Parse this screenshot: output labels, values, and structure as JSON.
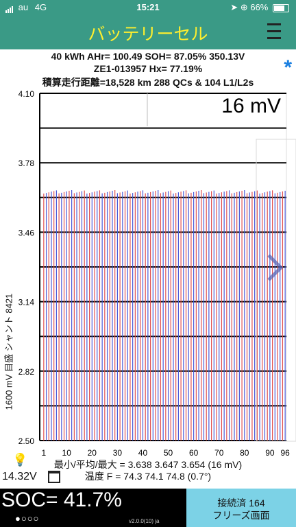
{
  "status_bar": {
    "carrier": "au",
    "network": "4G",
    "time": "15:21",
    "battery_pct_text": "66%",
    "battery_level": 0.66
  },
  "header": {
    "title": "バッテリーセル",
    "menu_icon": "hamburger-menu-icon"
  },
  "info": {
    "line1": "40 kWh  AHr= 100.49  SOH= 87.05%  350.13V",
    "line2": "ZE1-013957    Hx= 77.19%",
    "line3": "積算走行距離=18,528 km 288 QCs & 104 L1/L2s",
    "star_icon": "asterisk-icon"
  },
  "chart_data": {
    "type": "bar",
    "scale_label": "16 mV",
    "ylabel": "1600 mV 目盛 シャント 8421",
    "ylim": [
      2.5,
      4.1
    ],
    "yticks": [
      "4.10",
      "3.78",
      "3.46",
      "3.14",
      "2.82",
      "2.50"
    ],
    "xticks": [
      "1",
      "10",
      "20",
      "30",
      "40",
      "50",
      "60",
      "70",
      "80",
      "90",
      "96"
    ],
    "cell_count": 96,
    "min": 3.638,
    "avg": 3.647,
    "max": 3.654,
    "series_colors": [
      "#e05050",
      "#4a5ad8"
    ],
    "grid": true
  },
  "stats": {
    "min_avg_max_label": "最小/平均/最大 = 3.638 3.647 3.654  (16 mV)",
    "temp_label": "温度 F = 74.3  74.1  74.8  (0.7°)",
    "voltage": "14.32V",
    "bulb_icon": "lightbulb-icon",
    "calendar_icon": "calendar-icon"
  },
  "bottom": {
    "soc": "SOC= 41.7%",
    "dots": "●○○○",
    "version": "v2.0.0(10) ja",
    "freeze_line1": "接続済 164",
    "freeze_line2": "フリーズ画面"
  }
}
